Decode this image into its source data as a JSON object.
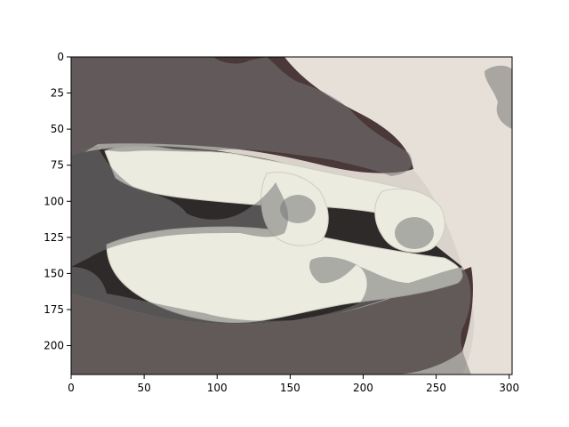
{
  "chart_data": {
    "type": "image",
    "title": "",
    "xlabel": "",
    "ylabel": "",
    "xlim": [
      0,
      302
    ],
    "ylim": [
      220,
      0
    ],
    "x_ticks": [
      0,
      50,
      100,
      150,
      200,
      250,
      300
    ],
    "y_ticks": [
      0,
      25,
      50,
      75,
      100,
      125,
      150,
      175,
      200
    ],
    "grid": false,
    "image_content": "close-up of mouth with white teeth, dark lips, light skin, and a semi-transparent gray segmentation overlay"
  },
  "colors": {
    "lips": "#4a3636",
    "teeth": "#ecebdf",
    "skin": "#e3ddd5",
    "overlay": "#6b6b6b"
  }
}
